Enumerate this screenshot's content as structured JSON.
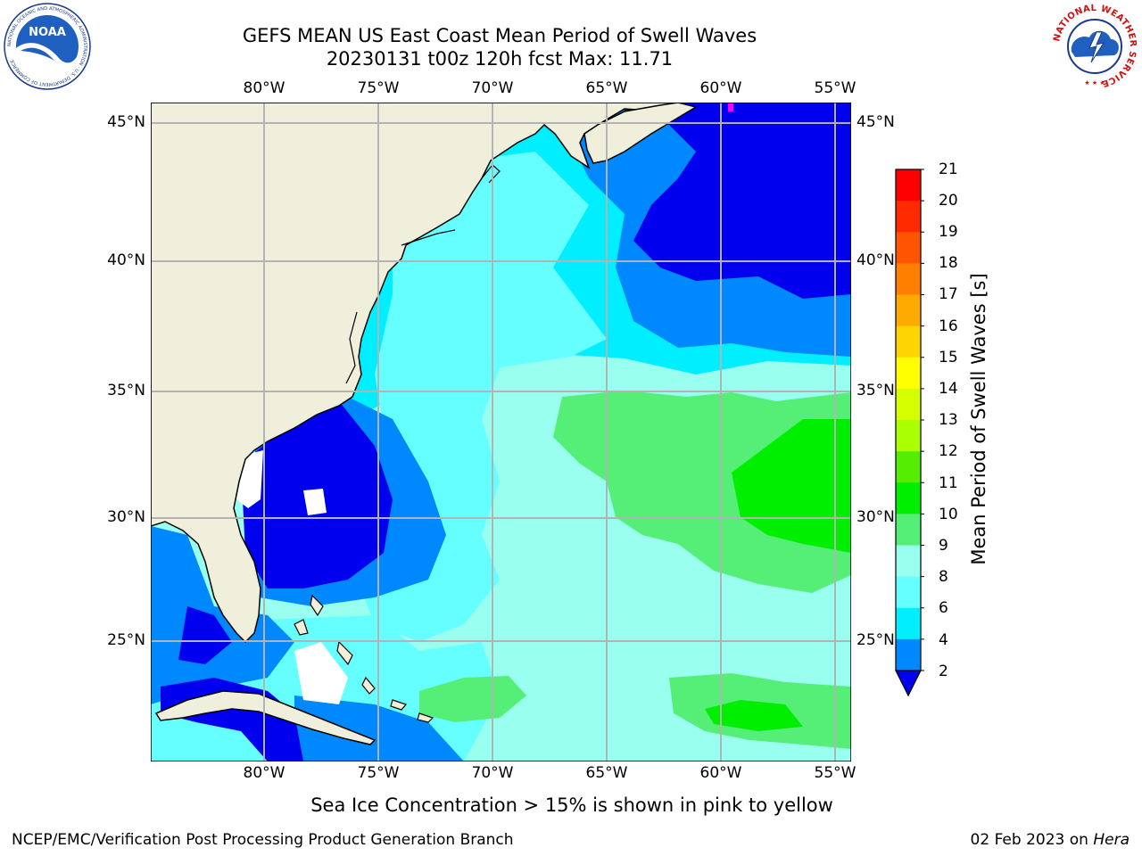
{
  "title": {
    "line1": "GEFS MEAN US East Coast Mean Period of Swell Waves",
    "line2": "20230131 t00z 120h fcst   Max: 11.71"
  },
  "logos": {
    "noaa": {
      "text": "NOAA",
      "ring_text": "NATIONAL OCEANIC AND ATMOSPHERIC ADMINISTRATION · U.S. DEPARTMENT OF COMMERCE"
    },
    "nws": {
      "ring_text": "NATIONAL WEATHER SERVICE"
    }
  },
  "map": {
    "lon_labels": [
      "80°W",
      "75°W",
      "70°W",
      "65°W",
      "60°W",
      "55°W"
    ],
    "lat_labels": [
      "45°N",
      "40°N",
      "35°N",
      "30°N",
      "25°N"
    ]
  },
  "colorbar": {
    "title": "Mean Period of Swell Waves [s]",
    "ticks": [
      "21",
      "20",
      "19",
      "18",
      "17",
      "16",
      "15",
      "14",
      "13",
      "12",
      "11",
      "10",
      "9",
      "8",
      "6",
      "4",
      "2"
    ],
    "colors": [
      "#ff0000",
      "#ff2a00",
      "#ff5500",
      "#ff7f00",
      "#ffaa00",
      "#ffd500",
      "#ffff00",
      "#d5ff00",
      "#aaff00",
      "#55ee00",
      "#00ee00",
      "#55ee77",
      "#99ffee",
      "#66ffff",
      "#00eeff",
      "#0088ff"
    ],
    "extend_color": "#0000ee"
  },
  "colors": {
    "land": "#efefdc",
    "grid": "#b3b3b3",
    "deep_blue": "#0000ee",
    "blue": "#0088ff",
    "cyan": "#00eeff",
    "light_cyan": "#66ffff",
    "pale": "#99ffee",
    "green": "#55ee77",
    "bright_green": "#00ee00",
    "ice": "#ff00ff"
  },
  "note": "Sea Ice Concentration > 15% is shown in pink to yellow",
  "footer": {
    "left": "NCEP/EMC/Verification Post Processing Product Generation Branch",
    "date": "02 Feb 2023 on",
    "machine": "Hera"
  }
}
